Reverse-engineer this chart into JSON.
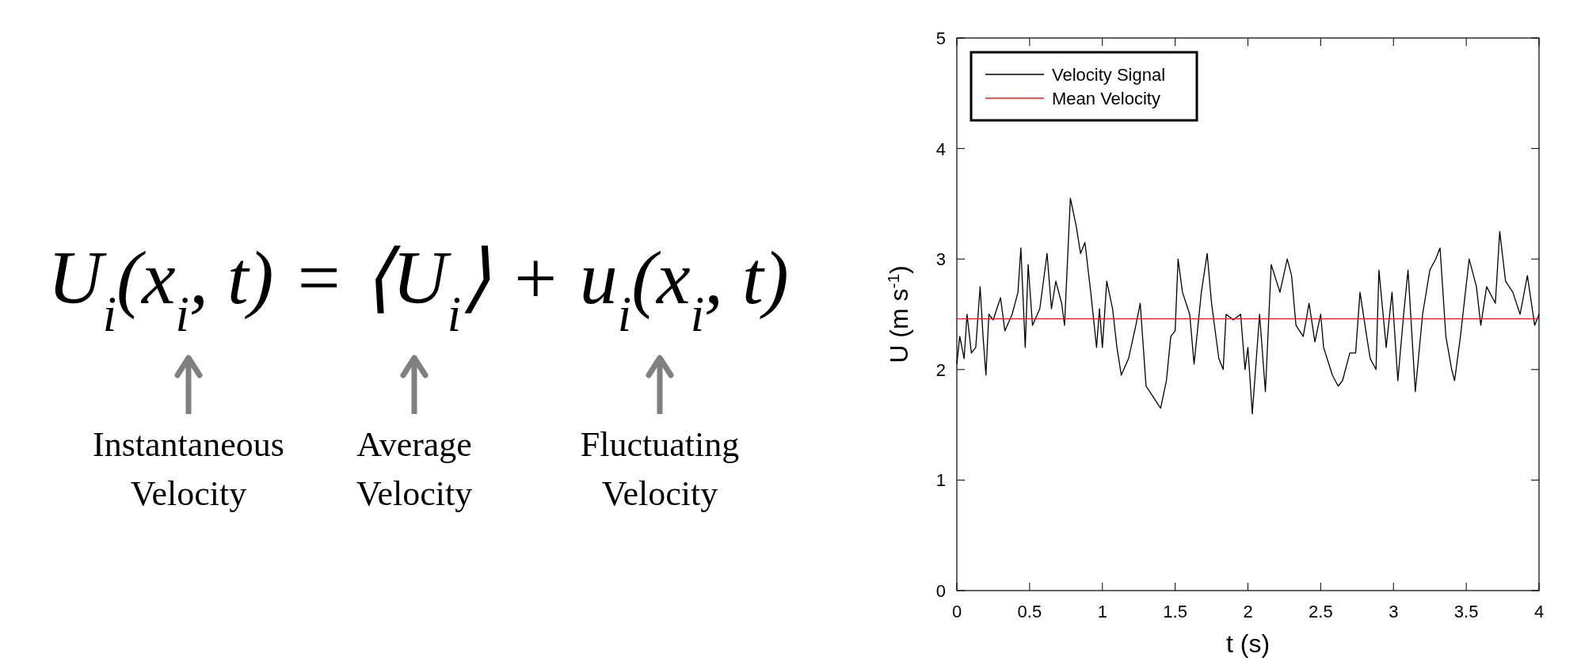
{
  "chart_data": [
    {
      "type": "other",
      "annotations": [
        "U$_{i}$(x$_{i}$, t) = ⟨U$_{i}$⟩ + u$_{i}$(x$_{i}$, t)",
        "Instantaneous Velocity",
        "Average Velocity",
        "Fluctuating Velocity"
      ]
    },
    {
      "type": "line",
      "xlabel": "t (s)",
      "ylabel": "U (m s$^{-1}$)",
      "xlim": [
        0,
        4
      ],
      "xticks": [
        0,
        0.5,
        1,
        1.5,
        2,
        2.5,
        3,
        3.5,
        4
      ],
      "ylim": [
        0,
        5
      ],
      "yticks": [
        0,
        1,
        2,
        3,
        4,
        5
      ],
      "grid": false,
      "legend": "top left",
      "marker": "none",
      "line_style": "solid",
      "series": [
        {
          "name": "Velocity Signal",
          "color": "#000000",
          "x": [
            0,
            0.02,
            0.05,
            0.07,
            0.1,
            0.13,
            0.16,
            0.18,
            0.2,
            0.22,
            0.25,
            0.3,
            0.33,
            0.38,
            0.42,
            0.44,
            0.47,
            0.49,
            0.52,
            0.57,
            0.62,
            0.65,
            0.68,
            0.72,
            0.74,
            0.78,
            0.82,
            0.85,
            0.88,
            0.92,
            0.96,
            0.98,
            1.0,
            1.03,
            1.07,
            1.1,
            1.13,
            1.18,
            1.23,
            1.26,
            1.3,
            1.35,
            1.4,
            1.44,
            1.47,
            1.5,
            1.52,
            1.55,
            1.6,
            1.63,
            1.68,
            1.72,
            1.75,
            1.8,
            1.83,
            1.85,
            1.9,
            1.95,
            1.98,
            2.0,
            2.03,
            2.08,
            2.12,
            2.16,
            2.22,
            2.27,
            2.3,
            2.33,
            2.38,
            2.42,
            2.46,
            2.5,
            2.52,
            2.58,
            2.62,
            2.65,
            2.7,
            2.74,
            2.77,
            2.81,
            2.84,
            2.88,
            2.9,
            2.95,
            2.99,
            3.03,
            3.07,
            3.1,
            3.15,
            3.2,
            3.25,
            3.29,
            3.32,
            3.36,
            3.4,
            3.42,
            3.46,
            3.52,
            3.57,
            3.6,
            3.64,
            3.7,
            3.73,
            3.77,
            3.82,
            3.87,
            3.92,
            3.97,
            4.0
          ],
          "values": [
            2.05,
            2.3,
            2.1,
            2.5,
            2.15,
            2.2,
            2.75,
            2.3,
            1.95,
            2.5,
            2.45,
            2.65,
            2.35,
            2.5,
            2.7,
            3.1,
            2.2,
            2.95,
            2.4,
            2.55,
            3.05,
            2.55,
            2.8,
            2.6,
            2.4,
            3.55,
            3.3,
            3.05,
            3.15,
            2.7,
            2.2,
            2.55,
            2.2,
            2.8,
            2.55,
            2.2,
            1.95,
            2.1,
            2.4,
            2.6,
            1.85,
            1.75,
            1.65,
            1.9,
            2.3,
            2.35,
            3.0,
            2.7,
            2.5,
            2.05,
            2.7,
            3.05,
            2.6,
            2.1,
            2.0,
            2.5,
            2.45,
            2.5,
            2.0,
            2.2,
            1.6,
            2.5,
            1.8,
            2.95,
            2.7,
            3.0,
            2.85,
            2.4,
            2.3,
            2.6,
            2.25,
            2.5,
            2.2,
            1.95,
            1.85,
            1.9,
            2.15,
            2.15,
            2.7,
            2.35,
            2.1,
            2.0,
            2.9,
            2.2,
            2.7,
            1.9,
            2.5,
            2.9,
            1.8,
            2.5,
            2.9,
            3.0,
            3.1,
            2.3,
            2.0,
            1.9,
            2.3,
            3.0,
            2.75,
            2.4,
            2.75,
            2.6,
            3.25,
            2.8,
            2.7,
            2.5,
            2.85,
            2.4,
            2.5
          ]
        },
        {
          "name": "Mean Velocity",
          "color": "#e8232a",
          "x": [
            0,
            4
          ],
          "values": [
            2.46,
            2.46
          ]
        }
      ]
    }
  ]
}
